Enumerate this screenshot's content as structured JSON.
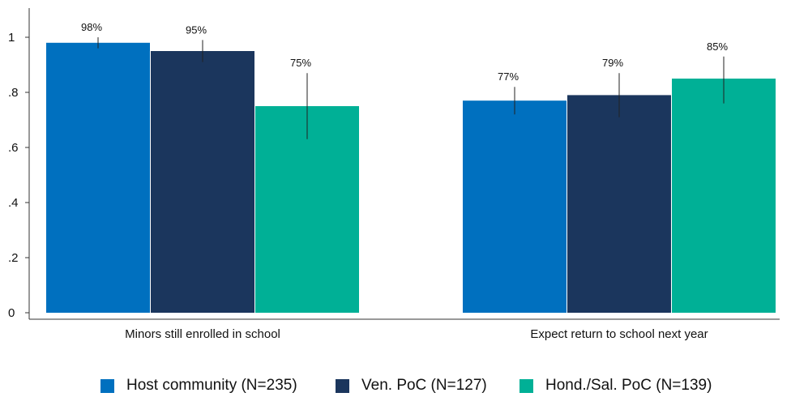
{
  "chart_data": {
    "type": "bar",
    "categories": [
      "Minors still enrolled in school",
      "Expect return to school next year"
    ],
    "series": [
      {
        "name": "Host community (N=235)",
        "color": "#0070bf",
        "values": [
          0.98,
          0.77
        ],
        "labels": [
          "98%",
          "77%"
        ],
        "ci": [
          [
            0.96,
            1.0
          ],
          [
            0.72,
            0.82
          ]
        ]
      },
      {
        "name": "Ven. PoC (N=127)",
        "color": "#1b365d",
        "values": [
          0.95,
          0.79
        ],
        "labels": [
          "95%",
          "79%"
        ],
        "ci": [
          [
            0.91,
            0.99
          ],
          [
            0.71,
            0.87
          ]
        ]
      },
      {
        "name": "Hond./Sal. PoC (N=139)",
        "color": "#00b096",
        "values": [
          0.75,
          0.85
        ],
        "labels": [
          "75%",
          "85%"
        ],
        "ci": [
          [
            0.63,
            0.87
          ],
          [
            0.76,
            0.93
          ]
        ]
      }
    ],
    "yticks": [
      "0",
      ".2",
      ".4",
      ".6",
      ".8",
      "1"
    ],
    "ylim": [
      0,
      1.05
    ],
    "title": "",
    "xlabel": "",
    "ylabel": "",
    "legend_position": "bottom",
    "grid": false
  }
}
